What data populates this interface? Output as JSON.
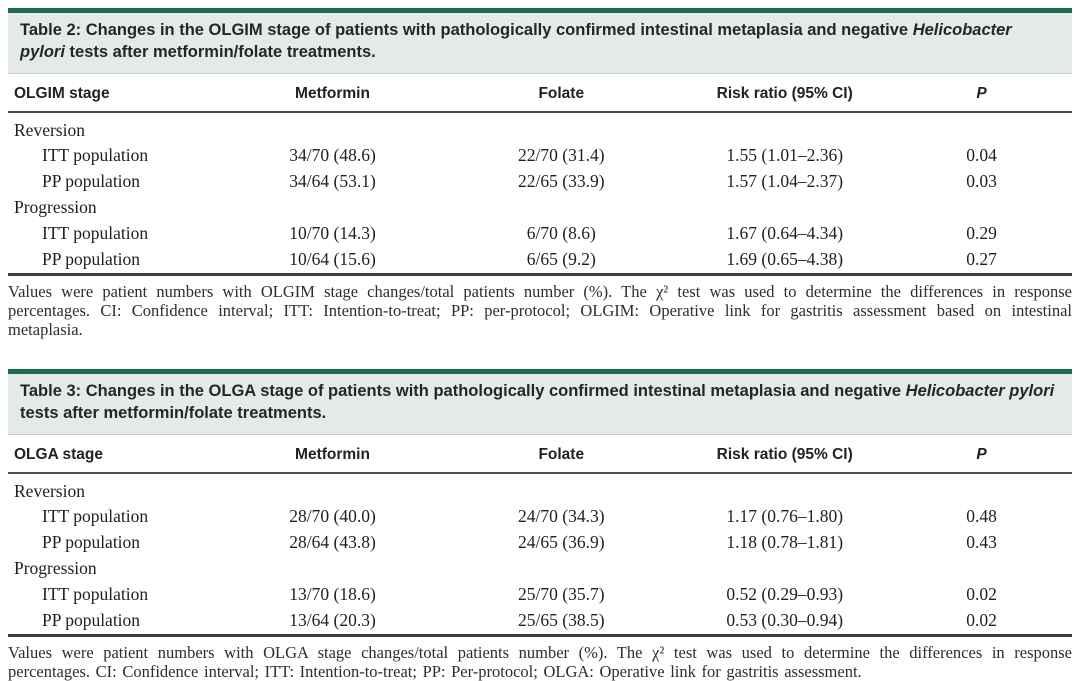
{
  "colors": {
    "bar_green": "#1c6b51",
    "band_green": "#e4ebe6",
    "rule_dark": "#3d3d3d"
  },
  "table2": {
    "title_pre": "Table 2: Changes in the OLGIM stage of patients with pathologically confirmed intestinal metaplasia and negative ",
    "title_italic": "Helicobacter pylori",
    "title_post": " tests after metformin/folate treatments.",
    "headers": [
      "OLGIM stage",
      "Metformin",
      "Folate",
      "Risk ratio (95% CI)",
      "P"
    ],
    "rows": [
      {
        "label": "Reversion",
        "section": true
      },
      {
        "label": "ITT population",
        "cells": [
          "34/70 (48.6)",
          "22/70 (31.4)",
          "1.55 (1.01–2.36)",
          "0.04"
        ]
      },
      {
        "label": "PP population",
        "cells": [
          "34/64 (53.1)",
          "22/65 (33.9)",
          "1.57 (1.04–2.37)",
          "0.03"
        ]
      },
      {
        "label": "Progression",
        "section": true
      },
      {
        "label": "ITT population",
        "cells": [
          "10/70 (14.3)",
          "6/70 (8.6)",
          "1.67 (0.64–4.34)",
          "0.29"
        ]
      },
      {
        "label": "PP population",
        "cells": [
          "10/64 (15.6)",
          "6/65 (9.2)",
          "1.69 (0.65–4.38)",
          "0.27"
        ]
      }
    ],
    "footnote": "Values were patient numbers with OLGIM stage changes/total patients number (%). The χ² test was used to determine the differences in response percentages. CI: Confidence interval; ITT: Intention-to-treat; PP: per-protocol; OLGIM: Operative link for gastritis assessment based on intestinal metaplasia."
  },
  "table3": {
    "title_pre": "Table 3: Changes in the OLGA stage of patients with pathologically confirmed intestinal metaplasia and negative ",
    "title_italic": "Helicobacter pylori",
    "title_post": " tests after metformin/folate treatments.",
    "headers": [
      "OLGA stage",
      "Metformin",
      "Folate",
      "Risk ratio (95% CI)",
      "P"
    ],
    "rows": [
      {
        "label": "Reversion",
        "section": true
      },
      {
        "label": "ITT population",
        "cells": [
          "28/70 (40.0)",
          "24/70 (34.3)",
          "1.17 (0.76–1.80)",
          "0.48"
        ]
      },
      {
        "label": "PP population",
        "cells": [
          "28/64 (43.8)",
          "24/65 (36.9)",
          "1.18 (0.78–1.81)",
          "0.43"
        ]
      },
      {
        "label": "Progression",
        "section": true
      },
      {
        "label": "ITT population",
        "cells": [
          "13/70 (18.6)",
          "25/70 (35.7)",
          "0.52 (0.29–0.93)",
          "0.02"
        ]
      },
      {
        "label": "PP population",
        "cells": [
          "13/64 (20.3)",
          "25/65 (38.5)",
          "0.53 (0.30–0.94)",
          "0.02"
        ]
      }
    ],
    "footnote": "Values were patient numbers with OLGA stage changes/total patients number (%). The χ² test was used to determine the differences in response percentages. CI: Confidence interval; ITT: Intention-to-treat; PP: Per-protocol; OLGA: Operative link for gastritis assessment."
  }
}
